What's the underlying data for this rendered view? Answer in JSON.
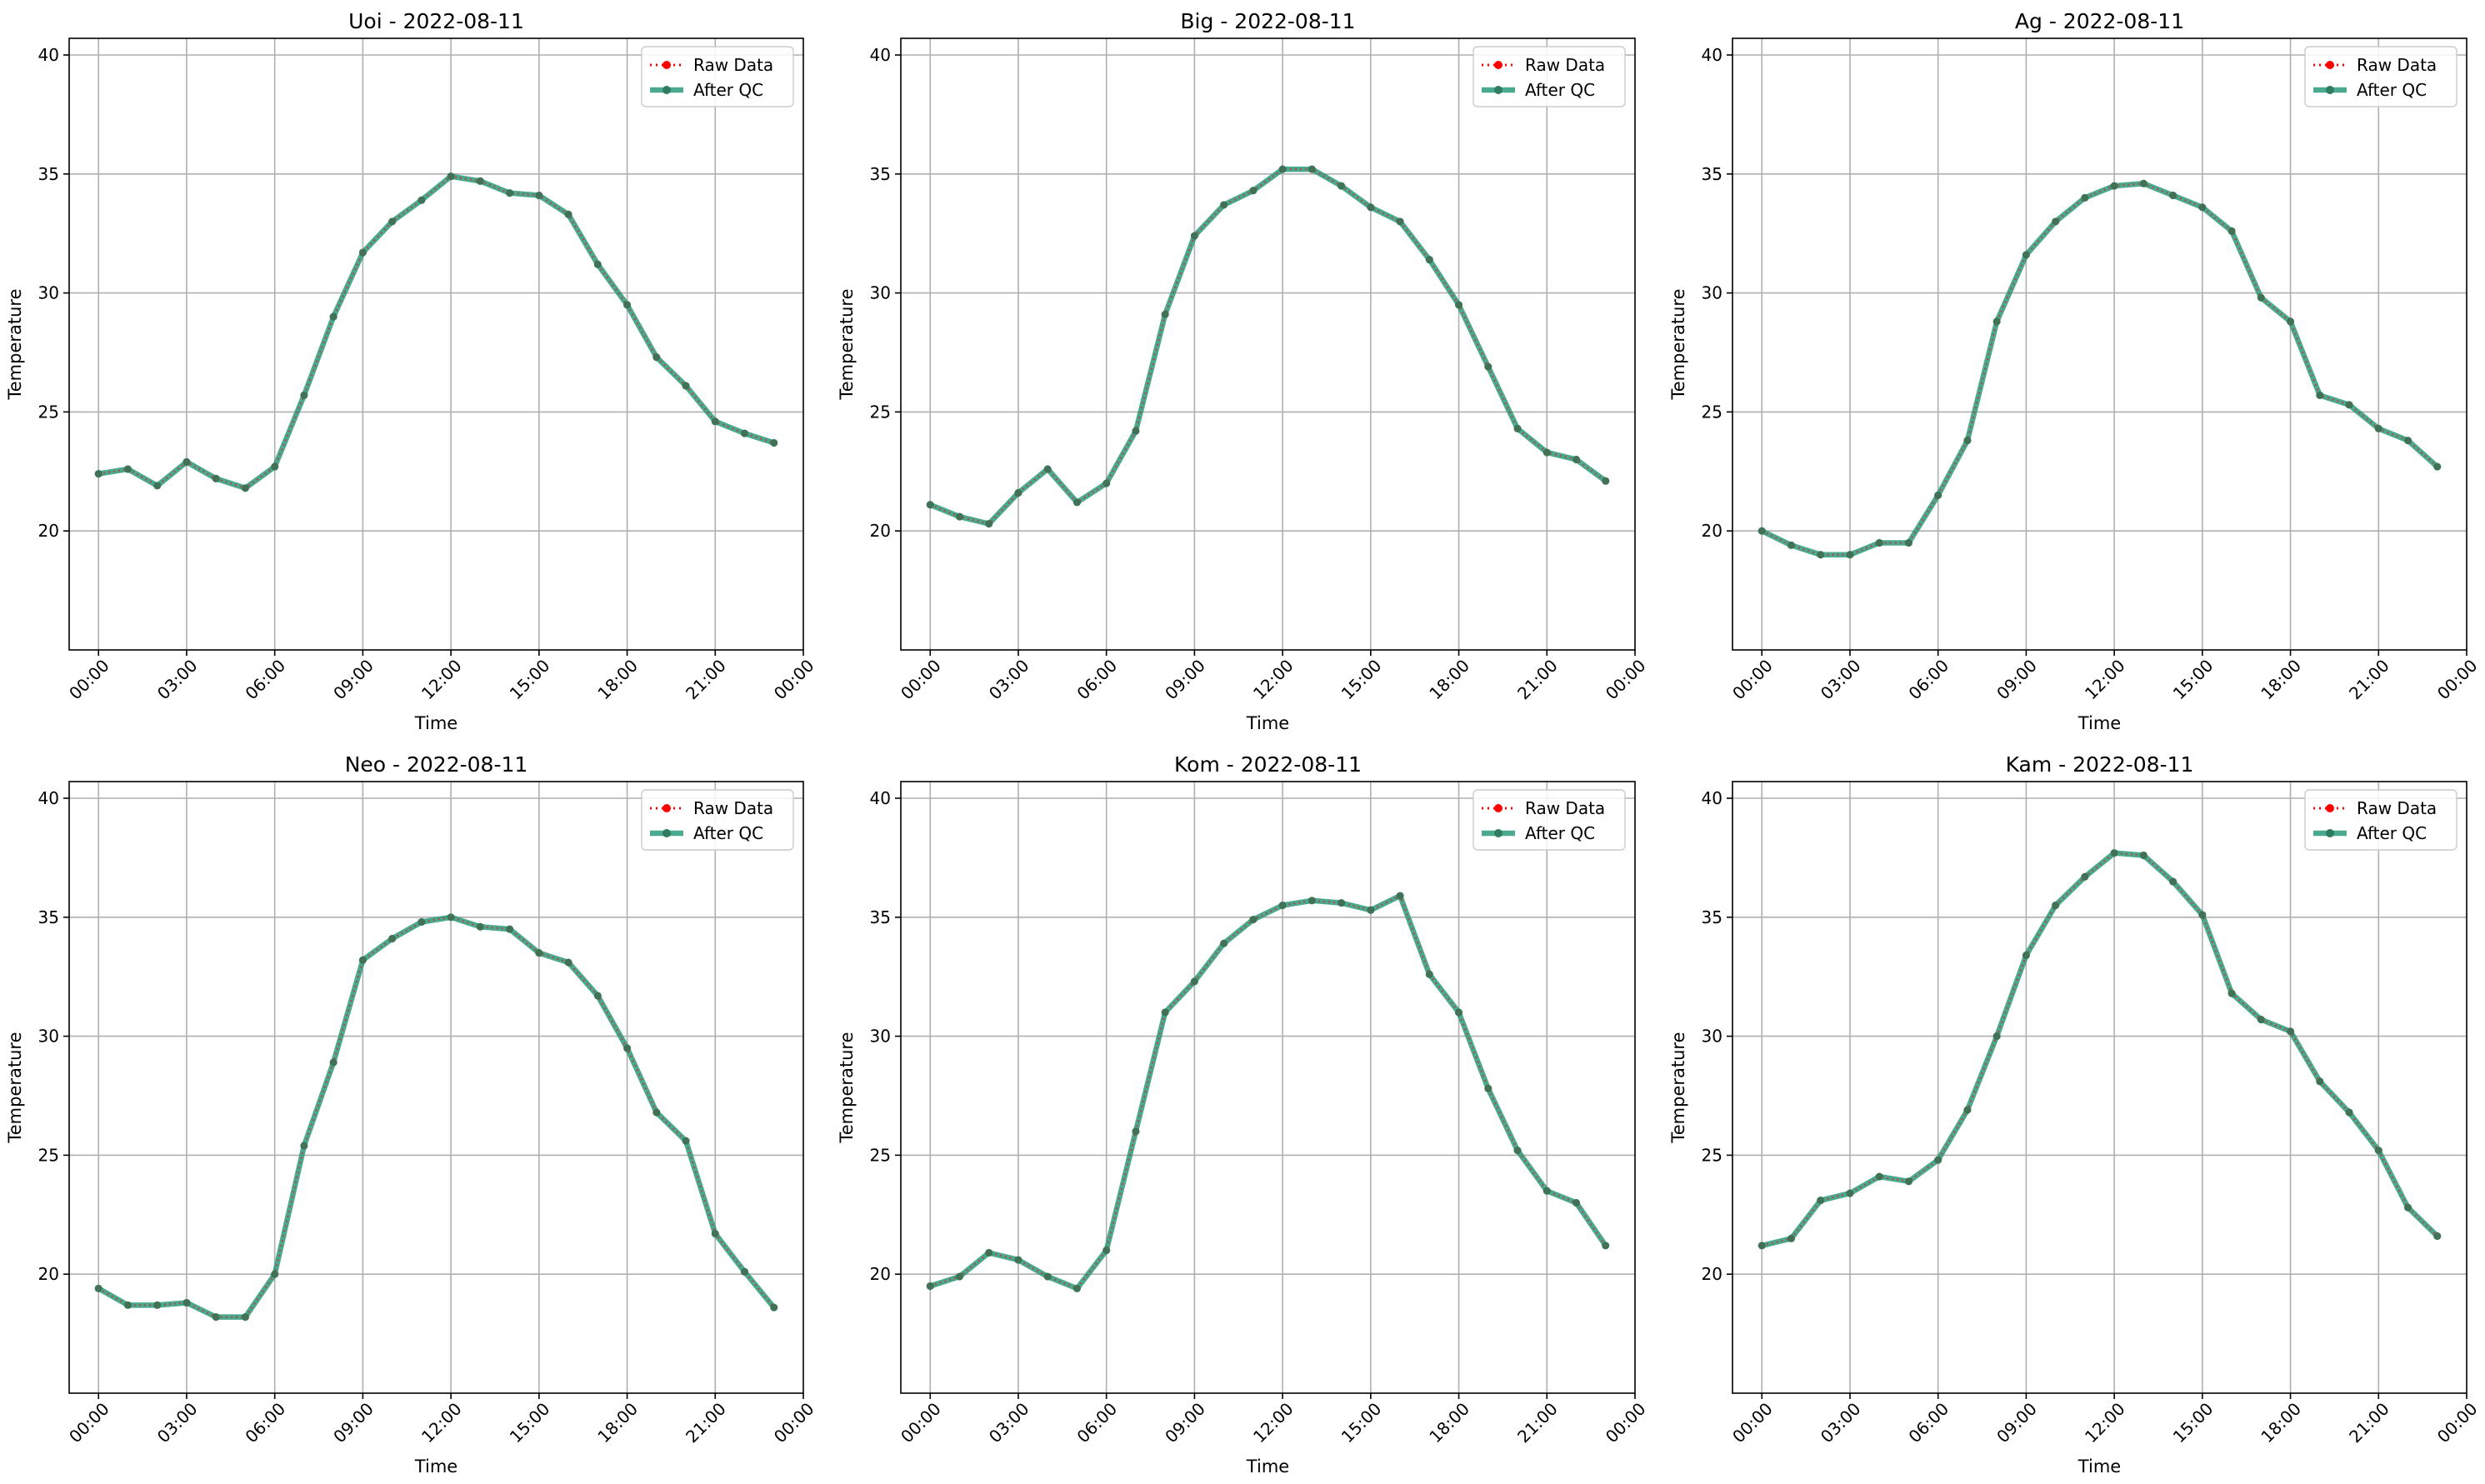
{
  "figure": {
    "title": ""
  },
  "colors": {
    "raw": "#ff0000",
    "qc": "#2a9a7a",
    "qc_marker": "#2e7d5e",
    "grid": "#b0b0b0",
    "axes": "#000000"
  },
  "chart_data": [
    {
      "type": "line",
      "title": "Uoi - 2022-08-11",
      "xlabel": "Time",
      "ylabel": "Temperature",
      "ylim": [
        15,
        40.7
      ],
      "xlim": [
        -1.0,
        24.0
      ],
      "xticks": [
        0,
        3,
        6,
        9,
        12,
        15,
        18,
        21,
        24
      ],
      "xticklabels": [
        "00:00",
        "03:00",
        "06:00",
        "09:00",
        "12:00",
        "15:00",
        "18:00",
        "21:00",
        "00:00"
      ],
      "yticks": [
        20,
        25,
        30,
        35,
        40
      ],
      "yticklabels": [
        "20",
        "25",
        "30",
        "35",
        "40"
      ],
      "grid": true,
      "legend_position": "top-right",
      "x": [
        0,
        1,
        2,
        3,
        4,
        5,
        6,
        7,
        8,
        9,
        10,
        11,
        12,
        13,
        14,
        15,
        16,
        17,
        18,
        19,
        20,
        21,
        22,
        23
      ],
      "series": [
        {
          "name": "Raw Data",
          "style": "dotted",
          "values": [
            22.4,
            22.6,
            21.9,
            22.9,
            22.2,
            21.8,
            22.7,
            25.7,
            29.0,
            31.7,
            33.0,
            33.9,
            34.9,
            34.7,
            34.2,
            34.1,
            33.3,
            31.2,
            29.5,
            27.3,
            26.1,
            24.6,
            24.1,
            23.7
          ]
        },
        {
          "name": "After QC",
          "style": "solid",
          "values": [
            22.4,
            22.6,
            21.9,
            22.9,
            22.2,
            21.8,
            22.7,
            25.7,
            29.0,
            31.7,
            33.0,
            33.9,
            34.9,
            34.7,
            34.2,
            34.1,
            33.3,
            31.2,
            29.5,
            27.3,
            26.1,
            24.6,
            24.1,
            23.7
          ]
        }
      ]
    },
    {
      "type": "line",
      "title": "Big - 2022-08-11",
      "xlabel": "Time",
      "ylabel": "Temperature",
      "ylim": [
        15,
        40.7
      ],
      "xlim": [
        -1.0,
        24.0
      ],
      "xticks": [
        0,
        3,
        6,
        9,
        12,
        15,
        18,
        21,
        24
      ],
      "xticklabels": [
        "00:00",
        "03:00",
        "06:00",
        "09:00",
        "12:00",
        "15:00",
        "18:00",
        "21:00",
        "00:00"
      ],
      "yticks": [
        20,
        25,
        30,
        35,
        40
      ],
      "yticklabels": [
        "20",
        "25",
        "30",
        "35",
        "40"
      ],
      "grid": true,
      "legend_position": "top-right",
      "x": [
        0,
        1,
        2,
        3,
        4,
        5,
        6,
        7,
        8,
        9,
        10,
        11,
        12,
        13,
        14,
        15,
        16,
        17,
        18,
        19,
        20,
        21,
        22,
        23
      ],
      "series": [
        {
          "name": "Raw Data",
          "style": "dotted",
          "values": [
            21.1,
            20.6,
            20.3,
            21.6,
            22.6,
            21.2,
            22.0,
            24.2,
            29.1,
            32.4,
            33.7,
            34.3,
            35.2,
            35.2,
            34.5,
            33.6,
            33.0,
            31.4,
            29.5,
            26.9,
            24.3,
            23.3,
            23.0,
            22.1
          ]
        },
        {
          "name": "After QC",
          "style": "solid",
          "values": [
            21.1,
            20.6,
            20.3,
            21.6,
            22.6,
            21.2,
            22.0,
            24.2,
            29.1,
            32.4,
            33.7,
            34.3,
            35.2,
            35.2,
            34.5,
            33.6,
            33.0,
            31.4,
            29.5,
            26.9,
            24.3,
            23.3,
            23.0,
            22.1
          ]
        }
      ]
    },
    {
      "type": "line",
      "title": "Ag - 2022-08-11",
      "xlabel": "Time",
      "ylabel": "Temperature",
      "ylim": [
        15,
        40.7
      ],
      "xlim": [
        -1.0,
        24.0
      ],
      "xticks": [
        0,
        3,
        6,
        9,
        12,
        15,
        18,
        21,
        24
      ],
      "xticklabels": [
        "00:00",
        "03:00",
        "06:00",
        "09:00",
        "12:00",
        "15:00",
        "18:00",
        "21:00",
        "00:00"
      ],
      "yticks": [
        20,
        25,
        30,
        35,
        40
      ],
      "yticklabels": [
        "20",
        "25",
        "30",
        "35",
        "40"
      ],
      "grid": true,
      "legend_position": "top-right",
      "x": [
        0,
        1,
        2,
        3,
        4,
        5,
        6,
        7,
        8,
        9,
        10,
        11,
        12,
        13,
        14,
        15,
        16,
        17,
        18,
        19,
        20,
        21,
        22,
        23
      ],
      "series": [
        {
          "name": "Raw Data",
          "style": "dotted",
          "values": [
            20.0,
            19.4,
            19.0,
            19.0,
            19.5,
            19.5,
            21.5,
            23.8,
            28.8,
            31.6,
            33.0,
            34.0,
            34.5,
            34.6,
            34.1,
            33.6,
            32.6,
            29.8,
            28.8,
            25.7,
            25.3,
            24.3,
            23.8,
            22.7
          ]
        },
        {
          "name": "After QC",
          "style": "solid",
          "values": [
            20.0,
            19.4,
            19.0,
            19.0,
            19.5,
            19.5,
            21.5,
            23.8,
            28.8,
            31.6,
            33.0,
            34.0,
            34.5,
            34.6,
            34.1,
            33.6,
            32.6,
            29.8,
            28.8,
            25.7,
            25.3,
            24.3,
            23.8,
            22.7
          ]
        }
      ]
    },
    {
      "type": "line",
      "title": "Neo - 2022-08-11",
      "xlabel": "Time",
      "ylabel": "Temperature",
      "ylim": [
        15,
        40.7
      ],
      "xlim": [
        -1.0,
        24.0
      ],
      "xticks": [
        0,
        3,
        6,
        9,
        12,
        15,
        18,
        21,
        24
      ],
      "xticklabels": [
        "00:00",
        "03:00",
        "06:00",
        "09:00",
        "12:00",
        "15:00",
        "18:00",
        "21:00",
        "00:00"
      ],
      "yticks": [
        20,
        25,
        30,
        35,
        40
      ],
      "yticklabels": [
        "20",
        "25",
        "30",
        "35",
        "40"
      ],
      "grid": true,
      "legend_position": "top-right",
      "x": [
        0,
        1,
        2,
        3,
        4,
        5,
        6,
        7,
        8,
        9,
        10,
        11,
        12,
        13,
        14,
        15,
        16,
        17,
        18,
        19,
        20,
        21,
        22,
        23
      ],
      "series": [
        {
          "name": "Raw Data",
          "style": "dotted",
          "values": [
            19.4,
            18.7,
            18.7,
            18.8,
            18.2,
            18.2,
            20.0,
            25.4,
            28.9,
            33.2,
            34.1,
            34.8,
            35.0,
            34.6,
            34.5,
            33.5,
            33.1,
            31.7,
            29.5,
            26.8,
            25.6,
            21.7,
            20.1,
            18.6
          ]
        },
        {
          "name": "After QC",
          "style": "solid",
          "values": [
            19.4,
            18.7,
            18.7,
            18.8,
            18.2,
            18.2,
            20.0,
            25.4,
            28.9,
            33.2,
            34.1,
            34.8,
            35.0,
            34.6,
            34.5,
            33.5,
            33.1,
            31.7,
            29.5,
            26.8,
            25.6,
            21.7,
            20.1,
            18.6
          ]
        }
      ]
    },
    {
      "type": "line",
      "title": "Kom - 2022-08-11",
      "xlabel": "Time",
      "ylabel": "Temperature",
      "ylim": [
        15,
        40.7
      ],
      "xlim": [
        -1.0,
        24.0
      ],
      "xticks": [
        0,
        3,
        6,
        9,
        12,
        15,
        18,
        21,
        24
      ],
      "xticklabels": [
        "00:00",
        "03:00",
        "06:00",
        "09:00",
        "12:00",
        "15:00",
        "18:00",
        "21:00",
        "00:00"
      ],
      "yticks": [
        20,
        25,
        30,
        35,
        40
      ],
      "yticklabels": [
        "20",
        "25",
        "30",
        "35",
        "40"
      ],
      "grid": true,
      "legend_position": "top-right",
      "x": [
        0,
        1,
        2,
        3,
        4,
        5,
        6,
        7,
        8,
        9,
        10,
        11,
        12,
        13,
        14,
        15,
        16,
        17,
        18,
        19,
        20,
        21,
        22,
        23
      ],
      "series": [
        {
          "name": "Raw Data",
          "style": "dotted",
          "values": [
            19.5,
            19.9,
            20.9,
            20.6,
            19.9,
            19.4,
            21.0,
            26.0,
            31.0,
            32.3,
            33.9,
            34.9,
            35.5,
            35.7,
            35.6,
            35.3,
            35.9,
            32.6,
            31.0,
            27.8,
            25.2,
            23.5,
            23.0,
            21.2
          ]
        },
        {
          "name": "After QC",
          "style": "solid",
          "values": [
            19.5,
            19.9,
            20.9,
            20.6,
            19.9,
            19.4,
            21.0,
            26.0,
            31.0,
            32.3,
            33.9,
            34.9,
            35.5,
            35.7,
            35.6,
            35.3,
            35.9,
            32.6,
            31.0,
            27.8,
            25.2,
            23.5,
            23.0,
            21.2
          ]
        }
      ]
    },
    {
      "type": "line",
      "title": "Kam - 2022-08-11",
      "xlabel": "Time",
      "ylabel": "Temperature",
      "ylim": [
        15,
        40.7
      ],
      "xlim": [
        -1.0,
        24.0
      ],
      "xticks": [
        0,
        3,
        6,
        9,
        12,
        15,
        18,
        21,
        24
      ],
      "xticklabels": [
        "00:00",
        "03:00",
        "06:00",
        "09:00",
        "12:00",
        "15:00",
        "18:00",
        "21:00",
        "00:00"
      ],
      "yticks": [
        20,
        25,
        30,
        35,
        40
      ],
      "yticklabels": [
        "20",
        "25",
        "30",
        "35",
        "40"
      ],
      "grid": true,
      "legend_position": "top-right",
      "x": [
        0,
        1,
        2,
        3,
        4,
        5,
        6,
        7,
        8,
        9,
        10,
        11,
        12,
        13,
        14,
        15,
        16,
        17,
        18,
        19,
        20,
        21,
        22,
        23
      ],
      "series": [
        {
          "name": "Raw Data",
          "style": "dotted",
          "values": [
            21.2,
            21.5,
            23.1,
            23.4,
            24.1,
            23.9,
            24.8,
            26.9,
            30.0,
            33.4,
            35.5,
            36.7,
            37.7,
            37.6,
            36.5,
            35.1,
            31.8,
            30.7,
            30.2,
            28.1,
            26.8,
            25.2,
            22.8,
            21.6
          ]
        },
        {
          "name": "After QC",
          "style": "solid",
          "values": [
            21.2,
            21.5,
            23.1,
            23.4,
            24.1,
            23.9,
            24.8,
            26.9,
            30.0,
            33.4,
            35.5,
            36.7,
            37.7,
            37.6,
            36.5,
            35.1,
            31.8,
            30.7,
            30.2,
            28.1,
            26.8,
            25.2,
            22.8,
            21.6
          ]
        }
      ]
    }
  ]
}
